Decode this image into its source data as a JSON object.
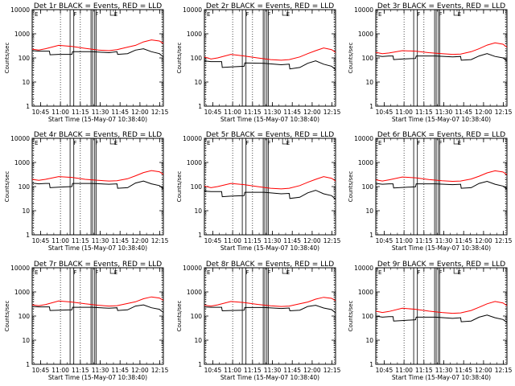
{
  "chart_data": [
    {
      "type": "line",
      "title": "Det 1r BLACK = Events, RED = LLD",
      "xlabel": "Start Time (15-May-07 10:38:40)",
      "ylabel": "Counts/sec",
      "x_ticks": [
        "10:45",
        "11:00",
        "11:15",
        "11:30",
        "11:45",
        "12:00",
        "12:15"
      ],
      "y_ticks": [
        "1",
        "10",
        "100",
        "1000",
        "10000"
      ],
      "y_scale": "log",
      "ylim": [
        1,
        10000
      ],
      "xlim_minutes_from_start": [
        0,
        99
      ],
      "grid": "vertical dotted at 11:00 and 11:15",
      "annotations": [
        "F",
        "F",
        "E"
      ],
      "colors": {
        "events": "#000000",
        "lld": "#ff0000"
      },
      "series": [
        {
          "color": "#000000",
          "x": [
            0,
            5,
            10,
            13,
            13.5,
            20,
            30,
            30.5,
            45,
            58,
            64,
            64.5,
            72,
            78,
            84,
            90,
            96,
            99
          ],
          "y": [
            200,
            190,
            190,
            190,
            135,
            140,
            140,
            180,
            180,
            165,
            180,
            140,
            150,
            210,
            240,
            180,
            150,
            110
          ]
        },
        {
          "color": "#ff0000",
          "x": [
            0,
            5,
            10,
            20,
            30,
            40,
            50,
            58,
            64,
            72,
            78,
            84,
            90,
            96,
            99
          ],
          "y": [
            230,
            210,
            240,
            330,
            300,
            250,
            210,
            200,
            220,
            280,
            330,
            460,
            560,
            500,
            400
          ]
        }
      ]
    },
    {
      "type": "line",
      "title": "Det 2r BLACK = Events, RED = LLD",
      "xlabel": "Start Time (15-May-07 10:38:40)",
      "ylabel": "Counts/sec",
      "x_ticks": [
        "10:45",
        "11:00",
        "11:15",
        "11:30",
        "11:45",
        "12:00",
        "12:15"
      ],
      "y_ticks": [
        "1",
        "10",
        "100",
        "1000",
        "10000"
      ],
      "y_scale": "log",
      "ylim": [
        1,
        10000
      ],
      "xlim_minutes_from_start": [
        0,
        99
      ],
      "grid": "vertical dotted at 11:00 and 11:15",
      "annotations": [
        "F",
        "F",
        "E"
      ],
      "colors": {
        "events": "#000000",
        "lld": "#ff0000"
      },
      "series": [
        {
          "color": "#000000",
          "x": [
            0,
            5,
            10,
            13,
            13.5,
            20,
            30,
            30.5,
            45,
            58,
            64,
            64.5,
            72,
            78,
            84,
            90,
            96,
            99
          ],
          "y": [
            75,
            70,
            70,
            70,
            40,
            42,
            45,
            62,
            60,
            52,
            55,
            35,
            40,
            60,
            75,
            55,
            45,
            32
          ]
        },
        {
          "color": "#ff0000",
          "x": [
            0,
            5,
            10,
            20,
            30,
            40,
            50,
            58,
            64,
            72,
            78,
            84,
            90,
            96,
            99
          ],
          "y": [
            110,
            90,
            100,
            140,
            120,
            100,
            85,
            80,
            85,
            110,
            150,
            200,
            260,
            220,
            170
          ]
        }
      ]
    },
    {
      "type": "line",
      "title": "Det 3r BLACK = Events, RED = LLD",
      "xlabel": "Start Time (15-May-07 10:38:40)",
      "ylabel": "Counts/sec",
      "x_ticks": [
        "10:45",
        "11:00",
        "11:15",
        "11:30",
        "11:45",
        "12:00",
        "12:15"
      ],
      "y_ticks": [
        "1",
        "10",
        "100",
        "1000",
        "10000"
      ],
      "y_scale": "log",
      "ylim": [
        1,
        10000
      ],
      "xlim_minutes_from_start": [
        0,
        99
      ],
      "grid": "vertical dotted at 11:00 and 11:15",
      "annotations": [
        "F",
        "F",
        "E"
      ],
      "colors": {
        "events": "#000000",
        "lld": "#ff0000"
      },
      "series": [
        {
          "color": "#000000",
          "x": [
            0,
            5,
            10,
            13,
            13.5,
            20,
            30,
            30.5,
            45,
            58,
            64,
            64.5,
            72,
            78,
            84,
            90,
            96,
            99
          ],
          "y": [
            125,
            115,
            120,
            120,
            85,
            90,
            95,
            120,
            120,
            110,
            115,
            80,
            85,
            120,
            150,
            115,
            100,
            75
          ]
        },
        {
          "color": "#ff0000",
          "x": [
            0,
            5,
            10,
            20,
            30,
            40,
            50,
            58,
            64,
            72,
            78,
            84,
            90,
            96,
            99
          ],
          "y": [
            170,
            150,
            160,
            200,
            190,
            165,
            150,
            140,
            145,
            180,
            240,
            340,
            420,
            370,
            280
          ]
        }
      ]
    },
    {
      "type": "line",
      "title": "Det 4r BLACK = Events, RED = LLD",
      "xlabel": "Start Time (15-May-07 10:38:40)",
      "ylabel": "Counts/sec",
      "x_ticks": [
        "10:45",
        "11:00",
        "11:15",
        "11:30",
        "11:45",
        "12:00",
        "12:15"
      ],
      "y_ticks": [
        "1",
        "10",
        "100",
        "1000",
        "10000"
      ],
      "y_scale": "log",
      "ylim": [
        1,
        10000
      ],
      "xlim_minutes_from_start": [
        0,
        99
      ],
      "grid": "vertical dotted at 11:00 and 11:15",
      "annotations": [
        "F",
        "F",
        "E"
      ],
      "colors": {
        "events": "#000000",
        "lld": "#ff0000"
      },
      "series": [
        {
          "color": "#000000",
          "x": [
            0,
            5,
            10,
            13,
            13.5,
            20,
            30,
            30.5,
            45,
            58,
            64,
            64.5,
            72,
            78,
            84,
            90,
            96,
            99
          ],
          "y": [
            140,
            130,
            135,
            135,
            90,
            95,
            100,
            135,
            135,
            125,
            130,
            85,
            90,
            140,
            170,
            130,
            110,
            80
          ]
        },
        {
          "color": "#ff0000",
          "x": [
            0,
            5,
            10,
            20,
            30,
            40,
            50,
            58,
            64,
            72,
            78,
            84,
            90,
            96,
            99
          ],
          "y": [
            200,
            180,
            200,
            260,
            240,
            200,
            180,
            170,
            175,
            210,
            280,
            380,
            460,
            410,
            320
          ]
        }
      ]
    },
    {
      "type": "line",
      "title": "Det 5r BLACK = Events, RED = LLD",
      "xlabel": "Start Time (15-May-07 10:38:40)",
      "ylabel": "Counts/sec",
      "x_ticks": [
        "10:45",
        "11:00",
        "11:15",
        "11:30",
        "11:45",
        "12:00",
        "12:15"
      ],
      "y_ticks": [
        "1",
        "10",
        "100",
        "1000",
        "10000"
      ],
      "y_scale": "log",
      "ylim": [
        1,
        10000
      ],
      "xlim_minutes_from_start": [
        0,
        99
      ],
      "grid": "vertical dotted at 11:00 and 11:15",
      "annotations": [
        "F",
        "F",
        "E"
      ],
      "colors": {
        "events": "#000000",
        "lld": "#ff0000"
      },
      "series": [
        {
          "color": "#000000",
          "x": [
            0,
            5,
            10,
            13,
            13.5,
            20,
            30,
            30.5,
            45,
            58,
            64,
            64.5,
            72,
            78,
            84,
            90,
            96,
            99
          ],
          "y": [
            65,
            62,
            62,
            62,
            38,
            40,
            42,
            58,
            58,
            50,
            52,
            32,
            36,
            55,
            70,
            50,
            42,
            30
          ]
        },
        {
          "color": "#ff0000",
          "x": [
            0,
            5,
            10,
            20,
            30,
            40,
            50,
            58,
            64,
            72,
            78,
            84,
            90,
            96,
            99
          ],
          "y": [
            105,
            90,
            100,
            135,
            120,
            100,
            85,
            80,
            85,
            110,
            150,
            200,
            260,
            220,
            170
          ]
        }
      ]
    },
    {
      "type": "line",
      "title": "Det 6r BLACK = Events, RED = LLD",
      "xlabel": "Start Time (15-May-07 10:38:40)",
      "ylabel": "Counts/sec",
      "x_ticks": [
        "10:45",
        "11:00",
        "11:15",
        "11:30",
        "11:45",
        "12:00",
        "12:15"
      ],
      "y_ticks": [
        "1",
        "10",
        "100",
        "1000",
        "10000"
      ],
      "y_scale": "log",
      "ylim": [
        1,
        10000
      ],
      "xlim_minutes_from_start": [
        0,
        99
      ],
      "grid": "vertical dotted at 11:00 and 11:15",
      "annotations": [
        "F",
        "F",
        "E"
      ],
      "colors": {
        "events": "#000000",
        "lld": "#ff0000"
      },
      "series": [
        {
          "color": "#000000",
          "x": [
            0,
            5,
            10,
            13,
            13.5,
            20,
            30,
            30.5,
            45,
            58,
            64,
            64.5,
            72,
            78,
            84,
            90,
            96,
            99
          ],
          "y": [
            135,
            125,
            130,
            130,
            88,
            92,
            98,
            130,
            130,
            120,
            125,
            85,
            90,
            135,
            165,
            125,
            105,
            78
          ]
        },
        {
          "color": "#ff0000",
          "x": [
            0,
            5,
            10,
            20,
            30,
            40,
            50,
            58,
            64,
            72,
            78,
            84,
            90,
            96,
            99
          ],
          "y": [
            190,
            170,
            190,
            250,
            230,
            195,
            175,
            165,
            170,
            205,
            270,
            370,
            450,
            400,
            310
          ]
        }
      ]
    },
    {
      "type": "line",
      "title": "Det 7r BLACK = Events, RED = LLD",
      "xlabel": "Start Time (15-May-07 10:38:40)",
      "ylabel": "Counts/sec",
      "x_ticks": [
        "10:45",
        "11:00",
        "11:15",
        "11:30",
        "11:45",
        "12:00",
        "12:15"
      ],
      "y_ticks": [
        "1",
        "10",
        "100",
        "1000",
        "10000"
      ],
      "y_scale": "log",
      "ylim": [
        1,
        10000
      ],
      "xlim_minutes_from_start": [
        0,
        99
      ],
      "grid": "vertical dotted at 11:00 and 11:15",
      "annotations": [
        "F",
        "F",
        "E"
      ],
      "colors": {
        "events": "#000000",
        "lld": "#ff0000"
      },
      "series": [
        {
          "color": "#000000",
          "x": [
            0,
            5,
            10,
            13,
            13.5,
            20,
            30,
            30.5,
            45,
            58,
            64,
            64.5,
            72,
            78,
            84,
            90,
            96,
            99
          ],
          "y": [
            250,
            240,
            240,
            240,
            170,
            175,
            180,
            230,
            230,
            210,
            220,
            170,
            180,
            260,
            290,
            220,
            190,
            140
          ]
        },
        {
          "color": "#ff0000",
          "x": [
            0,
            5,
            10,
            20,
            30,
            40,
            50,
            58,
            64,
            72,
            78,
            84,
            90,
            96,
            99
          ],
          "y": [
            290,
            270,
            300,
            420,
            380,
            320,
            280,
            260,
            270,
            330,
            390,
            520,
            620,
            560,
            450
          ]
        }
      ]
    },
    {
      "type": "line",
      "title": "Det 8r BLACK = Events, RED = LLD",
      "xlabel": "Start Time (15-May-07 10:38:40)",
      "ylabel": "Counts/sec",
      "x_ticks": [
        "10:45",
        "11:00",
        "11:15",
        "11:30",
        "11:45",
        "12:00",
        "12:15"
      ],
      "y_ticks": [
        "1",
        "10",
        "100",
        "1000",
        "10000"
      ],
      "y_scale": "log",
      "ylim": [
        1,
        10000
      ],
      "xlim_minutes_from_start": [
        0,
        99
      ],
      "grid": "vertical dotted at 11:00 and 11:15",
      "annotations": [
        "F",
        "F",
        "E"
      ],
      "colors": {
        "events": "#000000",
        "lld": "#ff0000"
      },
      "series": [
        {
          "color": "#000000",
          "x": [
            0,
            5,
            10,
            13,
            13.5,
            20,
            30,
            30.5,
            45,
            58,
            64,
            64.5,
            72,
            78,
            84,
            90,
            96,
            99
          ],
          "y": [
            240,
            230,
            230,
            230,
            165,
            170,
            175,
            225,
            225,
            205,
            215,
            165,
            175,
            250,
            280,
            215,
            185,
            135
          ]
        },
        {
          "color": "#ff0000",
          "x": [
            0,
            5,
            10,
            20,
            30,
            40,
            50,
            58,
            64,
            72,
            78,
            84,
            90,
            96,
            99
          ],
          "y": [
            280,
            260,
            290,
            400,
            360,
            305,
            265,
            250,
            260,
            320,
            380,
            500,
            600,
            540,
            430
          ]
        }
      ]
    },
    {
      "type": "line",
      "title": "Det 9r BLACK = Events, RED = LLD",
      "xlabel": "Start Time (15-May-07 10:38:40)",
      "ylabel": "Counts/sec",
      "x_ticks": [
        "10:45",
        "11:00",
        "11:15",
        "11:30",
        "11:45",
        "12:00",
        "12:15"
      ],
      "y_ticks": [
        "1",
        "10",
        "100",
        "1000",
        "10000"
      ],
      "y_scale": "log",
      "ylim": [
        1,
        10000
      ],
      "xlim_minutes_from_start": [
        0,
        99
      ],
      "grid": "vertical dotted at 11:00 and 11:15",
      "annotations": [
        "F",
        "F",
        "E"
      ],
      "colors": {
        "events": "#000000",
        "lld": "#ff0000"
      },
      "series": [
        {
          "color": "#000000",
          "x": [
            0,
            5,
            10,
            13,
            13.5,
            20,
            30,
            30.5,
            45,
            58,
            64,
            64.5,
            72,
            78,
            84,
            90,
            96,
            99
          ],
          "y": [
            100,
            90,
            95,
            95,
            62,
            65,
            70,
            90,
            90,
            80,
            85,
            58,
            62,
            90,
            110,
            85,
            72,
            55
          ]
        },
        {
          "color": "#ff0000",
          "x": [
            0,
            5,
            10,
            20,
            30,
            40,
            50,
            58,
            64,
            72,
            78,
            84,
            90,
            96,
            99
          ],
          "y": [
            160,
            140,
            155,
            210,
            190,
            160,
            140,
            130,
            135,
            170,
            230,
            320,
            400,
            350,
            270
          ]
        }
      ]
    }
  ]
}
